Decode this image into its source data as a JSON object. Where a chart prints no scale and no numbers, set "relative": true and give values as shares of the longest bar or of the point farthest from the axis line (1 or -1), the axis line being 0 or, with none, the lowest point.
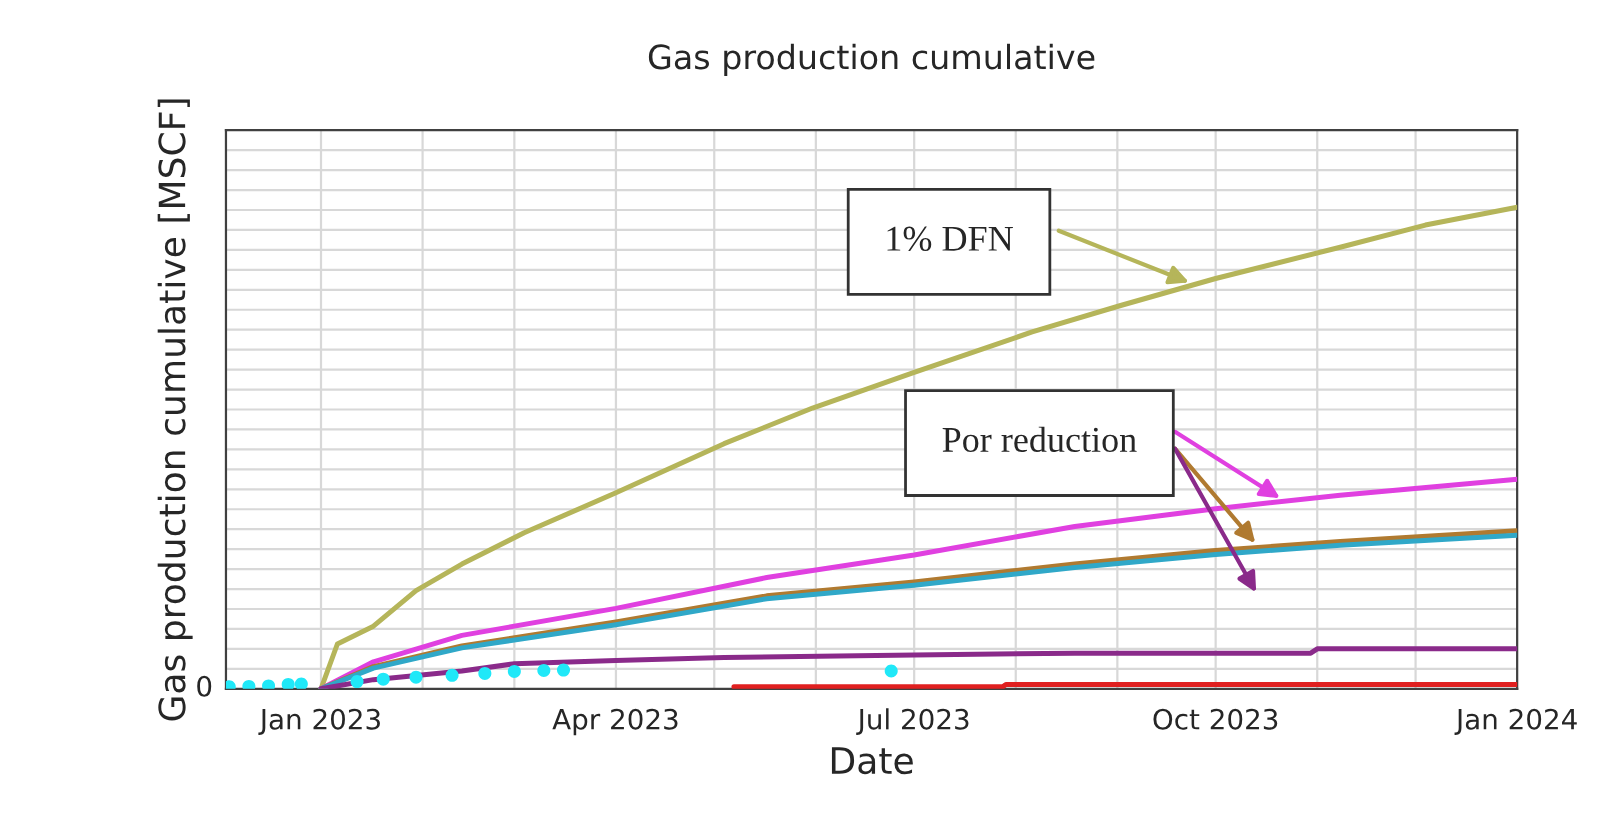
{
  "chart_data": {
    "type": "line",
    "title": "Gas production cumulative",
    "xlabel": "Date",
    "ylabel": "Gas production cumulative [MSCF]",
    "relative": true,
    "grid": true,
    "marker": "none",
    "line_style": "solid",
    "xlim": [
      "2022-12-03",
      "2024-01-01"
    ],
    "xticks": [
      {
        "value": "2023-01-01",
        "label": "Jan 2023"
      },
      {
        "value": "2023-04-01",
        "label": "Apr 2023"
      },
      {
        "value": "2023-07-01",
        "label": "Jul 2023"
      },
      {
        "value": "2023-10-01",
        "label": "Oct 2023"
      },
      {
        "value": "2024-01-01",
        "label": "Jan 2024"
      }
    ],
    "series": [
      {
        "color": "#b5b55a",
        "x": [
          "2023-01-01",
          "2023-01-06",
          "2023-01-17",
          "2023-01-30",
          "2023-02-13",
          "2023-03-04",
          "2023-04-01",
          "2023-05-04",
          "2023-05-31",
          "2023-07-01",
          "2023-08-06",
          "2023-09-02",
          "2023-10-01",
          "2023-11-08",
          "2023-12-04",
          "2024-01-01"
        ],
        "values": [
          0,
          0.093,
          0.13,
          0.204,
          0.259,
          0.324,
          0.407,
          0.509,
          0.583,
          0.657,
          0.741,
          0.796,
          0.852,
          0.917,
          0.963,
          1.0
        ]
      },
      {
        "color": "#e040e0",
        "x": [
          "2023-01-01",
          "2023-01-17",
          "2023-02-13",
          "2023-04-01",
          "2023-05-17",
          "2023-07-01",
          "2023-08-19",
          "2023-10-01",
          "2023-11-08",
          "2024-01-01"
        ],
        "values": [
          0,
          0.056,
          0.111,
          0.167,
          0.231,
          0.278,
          0.337,
          0.374,
          0.402,
          0.435
        ]
      },
      {
        "color": "#b07a30",
        "x": [
          "2023-01-01",
          "2023-01-17",
          "2023-02-13",
          "2023-04-01",
          "2023-05-17",
          "2023-07-01",
          "2023-08-19",
          "2023-10-01",
          "2023-11-08",
          "2024-01-01"
        ],
        "values": [
          0,
          0.046,
          0.089,
          0.139,
          0.193,
          0.222,
          0.259,
          0.287,
          0.306,
          0.328
        ]
      },
      {
        "color": "#30a8c8",
        "x": [
          "2023-01-01",
          "2023-01-17",
          "2023-02-13",
          "2023-04-01",
          "2023-05-17",
          "2023-07-01",
          "2023-08-19",
          "2023-10-01",
          "2023-11-08",
          "2024-01-01"
        ],
        "values": [
          0,
          0.043,
          0.085,
          0.133,
          0.187,
          0.215,
          0.252,
          0.279,
          0.298,
          0.319
        ]
      },
      {
        "color": "#8a2a8a",
        "x": [
          "2023-01-01",
          "2023-01-17",
          "2023-02-13",
          "2023-03-01",
          "2023-04-01",
          "2023-05-04",
          "2023-07-01",
          "2023-08-19",
          "2023-10-30",
          "2023-11-01",
          "2024-01-01"
        ],
        "values": [
          0,
          0.019,
          0.037,
          0.052,
          0.059,
          0.065,
          0.07,
          0.074,
          0.074,
          0.083,
          0.083
        ]
      },
      {
        "color": "#e02020",
        "x": [
          "2023-05-07",
          "2023-07-28",
          "2023-07-29",
          "2024-01-01"
        ],
        "values": [
          0.004,
          0.004,
          0.009,
          0.009
        ]
      },
      {
        "type": "scatter",
        "marker": "circle",
        "color": "#20e8f8",
        "x": [
          "2022-12-04",
          "2022-12-10",
          "2022-12-16",
          "2022-12-22",
          "2022-12-26",
          "2023-01-12",
          "2023-01-20",
          "2023-01-30",
          "2023-02-10",
          "2023-02-20",
          "2023-03-01",
          "2023-03-10",
          "2023-03-16",
          "2023-06-24"
        ],
        "values": [
          0.004,
          0.005,
          0.006,
          0.009,
          0.01,
          0.015,
          0.02,
          0.024,
          0.028,
          0.032,
          0.036,
          0.038,
          0.039,
          0.037
        ]
      }
    ],
    "annotations": [
      "1% DFN",
      "Por reduction",
      "0"
    ]
  }
}
